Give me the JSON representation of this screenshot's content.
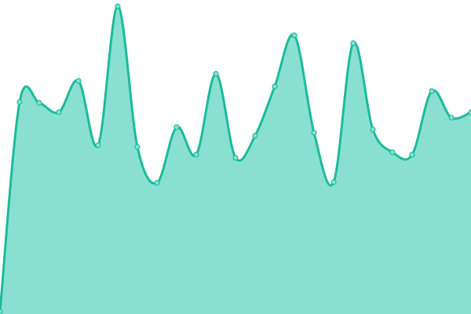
{
  "chart_data": {
    "type": "area",
    "x": [
      0,
      1,
      2,
      3,
      4,
      5,
      6,
      7,
      8,
      9,
      10,
      11,
      12,
      13,
      14,
      15,
      16,
      17,
      18,
      19,
      20,
      21,
      22,
      23,
      24
    ],
    "values": [
      3,
      270,
      269,
      257,
      297,
      215,
      392,
      213,
      167,
      238,
      203,
      306,
      199,
      227,
      290,
      355,
      231,
      168,
      345,
      235,
      206,
      203,
      284,
      250,
      257
    ],
    "ylim": [
      0,
      400
    ],
    "xlim": [
      0,
      24
    ],
    "grid": false,
    "smooth": true,
    "colors": {
      "line": "#1abc9c",
      "fill": "#8ae0d0",
      "marker_fill": "#8ae0d0"
    }
  }
}
